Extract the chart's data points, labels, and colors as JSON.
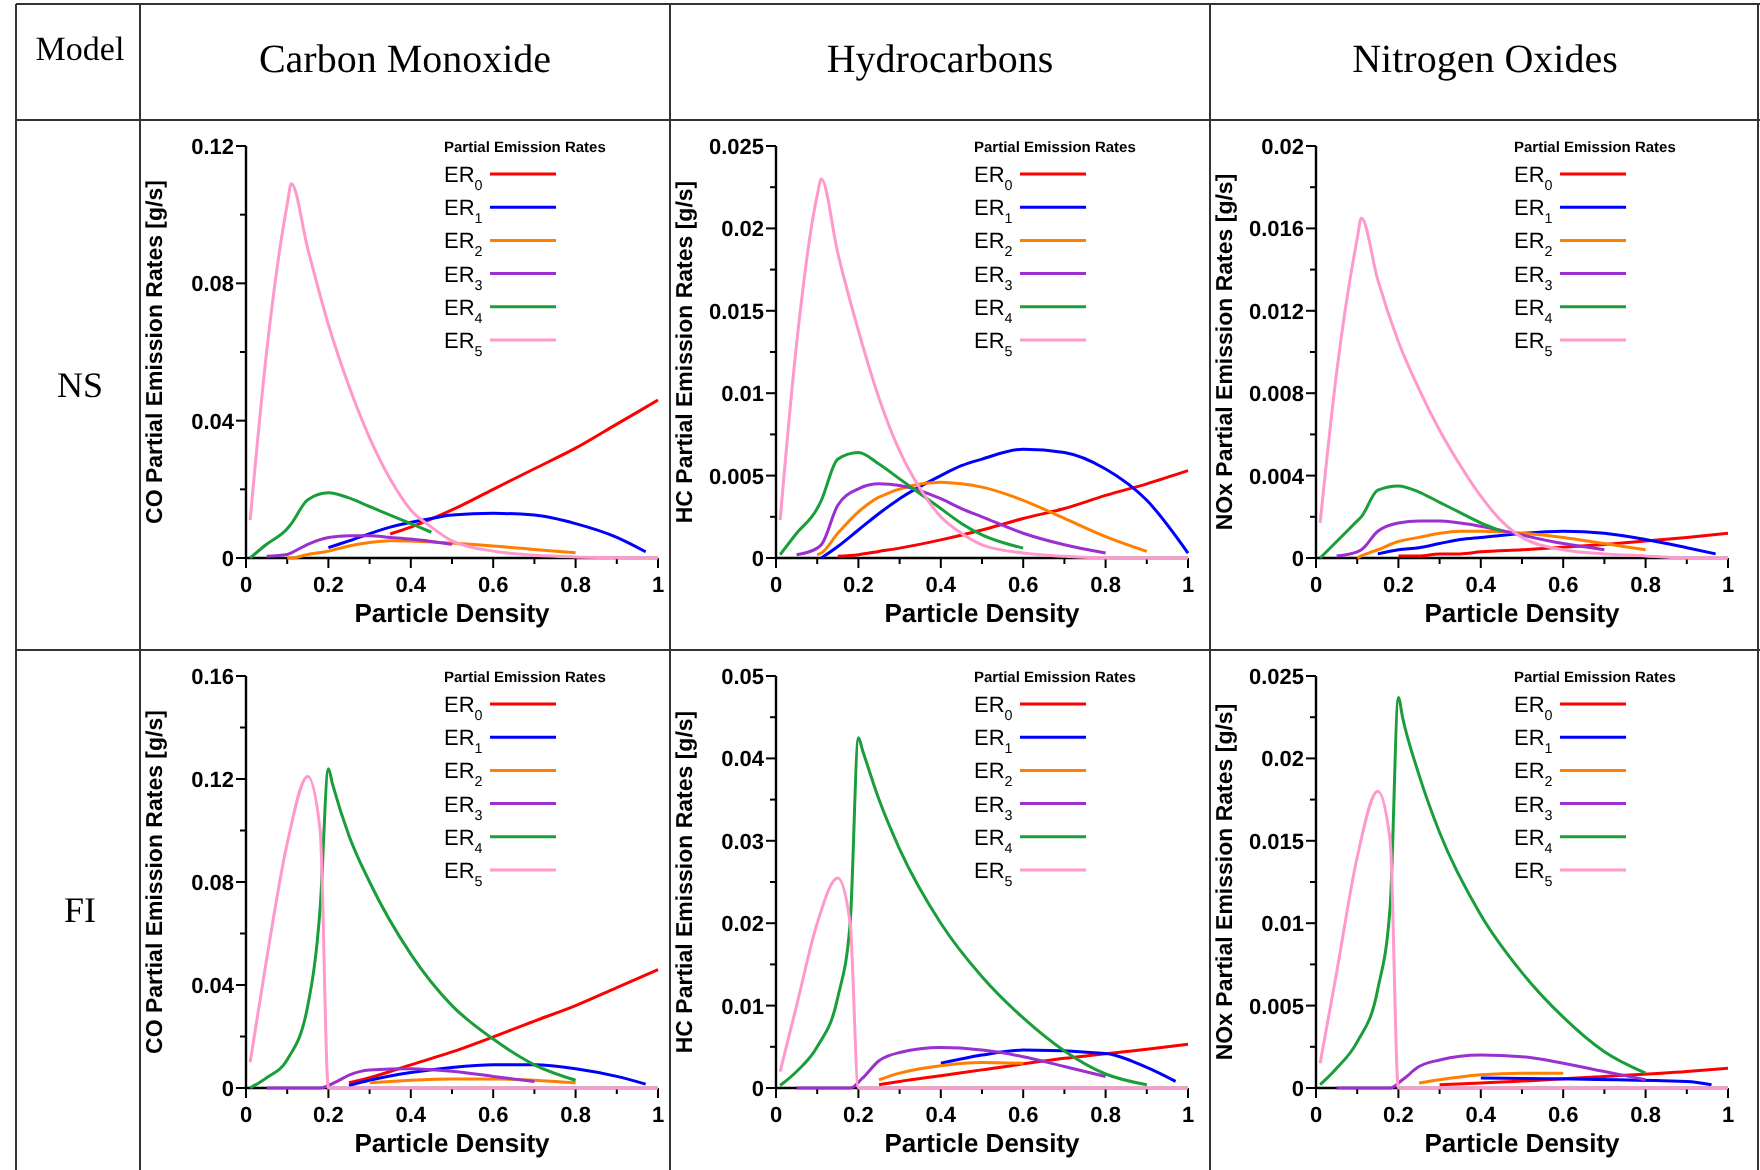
{
  "chart_data": [
    {
      "type": "other",
      "annotations": [
        "Model",
        "Carbon Monoxide",
        "Hydrocarbons",
        "Nitrogen Oxides",
        "NS",
        "FI"
      ]
    },
    {
      "type": "line",
      "xlabel": "Particle Density",
      "ylabel": "CO Partial Emission Rates [g/s]",
      "legend_title": "Partial Emission Rates",
      "legend": "top right",
      "xlim": [
        0,
        1
      ],
      "ylim": [
        0,
        0.12
      ],
      "xticks": [
        0,
        {
          "value": 0.1,
          "label": null
        },
        0.2,
        {
          "value": 0.3,
          "label": null
        },
        0.4,
        {
          "value": 0.5,
          "label": null
        },
        0.6,
        {
          "value": 0.7,
          "label": null
        },
        0.8,
        {
          "value": 0.9,
          "label": null
        },
        1
      ],
      "yticks": [
        0,
        {
          "value": 0.02,
          "label": null
        },
        0.04,
        {
          "value": 0.06,
          "label": null
        },
        0.08,
        {
          "value": 0.1,
          "label": null
        },
        0.12
      ],
      "series": [
        {
          "name": "ER$_{0}$",
          "color": "#ff0000",
          "x": [
            0.35,
            0.4,
            0.5,
            0.6,
            0.7,
            0.8,
            0.9,
            1
          ],
          "values": [
            0.007,
            0.009,
            0.014,
            0.02,
            0.026,
            0.032,
            0.039,
            0.046
          ]
        },
        {
          "name": "ER$_{1}$",
          "color": "#0000ff",
          "x": [
            0.2,
            0.25,
            0.35,
            0.45,
            0.5,
            0.6,
            0.7,
            0.8,
            0.9,
            0.97
          ],
          "values": [
            0.003,
            0.005,
            0.009,
            0.0115,
            0.0125,
            0.013,
            0.0125,
            0.01,
            0.006,
            0.0018
          ]
        },
        {
          "name": "ER$_{2}$",
          "color": "#ff7f00",
          "x": [
            0.1,
            0.11,
            0.15,
            0.2,
            0.25,
            0.3,
            0.35,
            0.6,
            0.7,
            0.8
          ],
          "values": [
            0,
            0,
            0.001,
            0.002,
            0.0035,
            0.0045,
            0.005,
            0.0035,
            0.0025,
            0.0015
          ]
        },
        {
          "name": "ER$_{3}$",
          "color": "#9b30d0",
          "x": [
            0.05,
            0.1,
            0.11,
            0.15,
            0.2,
            0.25,
            0.3,
            0.35,
            0.4,
            0.45,
            0.5
          ],
          "values": [
            0.0005,
            0.001,
            0.0015,
            0.004,
            0.006,
            0.0065,
            0.0065,
            0.006,
            0.0055,
            0.0048,
            0.004
          ]
        },
        {
          "name": "ER$_{4}$",
          "color": "#1a9e3a",
          "x": [
            0.01,
            0.05,
            0.1,
            0.11,
            0.15,
            0.2,
            0.25,
            0.3,
            0.35,
            0.4,
            0.45
          ],
          "values": [
            0,
            0.004,
            0.0085,
            0.01,
            0.017,
            0.019,
            0.0175,
            0.015,
            0.0125,
            0.01,
            0.0075
          ]
        },
        {
          "name": "ER$_{5}$",
          "color": "#ff99cc",
          "x": [
            0.01,
            0.05,
            0.1,
            0.11,
            0.15,
            0.2,
            0.25,
            0.3,
            0.35,
            0.4,
            0.45,
            0.5,
            0.6,
            0.7,
            0.8,
            0.9,
            1
          ],
          "values": [
            0.011,
            0.06,
            0.103,
            0.109,
            0.09,
            0.068,
            0.05,
            0.035,
            0.023,
            0.014,
            0.009,
            0.005,
            0.002,
            0.0008,
            0.0003,
            0.0001,
            0
          ]
        }
      ]
    },
    {
      "type": "line",
      "xlabel": "Particle Density",
      "ylabel": "HC Partial Emission Rates [g/s]",
      "legend_title": "Partial Emission Rates",
      "legend": "top right",
      "xlim": [
        0,
        1
      ],
      "ylim": [
        0,
        0.025
      ],
      "xticks": [
        0,
        {
          "value": 0.1,
          "label": null
        },
        0.2,
        {
          "value": 0.3,
          "label": null
        },
        0.4,
        {
          "value": 0.5,
          "label": null
        },
        0.6,
        {
          "value": 0.7,
          "label": null
        },
        0.8,
        {
          "value": 0.9,
          "label": null
        },
        1
      ],
      "yticks": [
        0,
        {
          "value": 0.0025,
          "label": null
        },
        0.005,
        {
          "value": 0.0075,
          "label": null
        },
        0.01,
        {
          "value": 0.0125,
          "label": null
        },
        0.015,
        {
          "value": 0.0175,
          "label": null
        },
        0.02,
        {
          "value": 0.0225,
          "label": null
        },
        0.025
      ],
      "series": [
        {
          "name": "ER$_{0}$",
          "color": "#ff0000",
          "x": [
            0.15,
            0.2,
            0.25,
            0.3,
            0.4,
            0.5,
            0.6,
            0.7,
            0.8,
            0.9,
            1
          ],
          "values": [
            0.0001,
            0.0002,
            0.0004,
            0.0006,
            0.0011,
            0.0017,
            0.0024,
            0.003,
            0.0038,
            0.0045,
            0.0053
          ]
        },
        {
          "name": "ER$_{1}$",
          "color": "#0000ff",
          "x": [
            0.11,
            0.15,
            0.2,
            0.25,
            0.3,
            0.4,
            0.45,
            0.5,
            0.6,
            0.7,
            0.8,
            0.9,
            1
          ],
          "values": [
            0,
            0.0007,
            0.0017,
            0.0027,
            0.0036,
            0.005,
            0.0056,
            0.006,
            0.0066,
            0.0064,
            0.0054,
            0.0035,
            0.0003
          ]
        },
        {
          "name": "ER$_{2}$",
          "color": "#ff7f00",
          "x": [
            0.1,
            0.11,
            0.15,
            0.2,
            0.25,
            0.4,
            0.45,
            0.5,
            0.6,
            0.7,
            0.8,
            0.9
          ],
          "values": [
            0.0002,
            0.0003,
            0.0015,
            0.0028,
            0.0037,
            0.0046,
            0.0045,
            0.0043,
            0.0035,
            0.0024,
            0.0013,
            0.0004
          ]
        },
        {
          "name": "ER$_{3}$",
          "color": "#9b30d0",
          "x": [
            0.05,
            0.1,
            0.11,
            0.15,
            0.2,
            0.25,
            0.3,
            0.4,
            0.45,
            0.5,
            0.6,
            0.7,
            0.8
          ],
          "values": [
            0.0002,
            0.0006,
            0.0008,
            0.0032,
            0.0042,
            0.0045,
            0.0044,
            0.0036,
            0.003,
            0.0025,
            0.0015,
            0.0008,
            0.0003
          ]
        },
        {
          "name": "ER$_{4}$",
          "color": "#1a9e3a",
          "x": [
            0.01,
            0.05,
            0.1,
            0.11,
            0.15,
            0.2,
            0.25,
            0.3,
            0.4,
            0.45,
            0.5,
            0.6
          ],
          "values": [
            0.0002,
            0.0015,
            0.003,
            0.0035,
            0.006,
            0.0064,
            0.0057,
            0.0048,
            0.003,
            0.0021,
            0.0014,
            0.0006
          ]
        },
        {
          "name": "ER$_{5}$",
          "color": "#ff99cc",
          "x": [
            0.01,
            0.05,
            0.1,
            0.11,
            0.15,
            0.2,
            0.25,
            0.3,
            0.35,
            0.4,
            0.45,
            0.5,
            0.6,
            0.7,
            0.8,
            0.9,
            1
          ],
          "values": [
            0.0023,
            0.013,
            0.022,
            0.023,
            0.0185,
            0.0138,
            0.0097,
            0.0065,
            0.0042,
            0.0025,
            0.0015,
            0.0008,
            0.0003,
            0.0001,
            0,
            0,
            0
          ]
        }
      ]
    },
    {
      "type": "line",
      "xlabel": "Particle Density",
      "ylabel": "NOx Partial Emission Rates [g/s]",
      "legend_title": "Partial Emission Rates",
      "legend": "top right",
      "xlim": [
        0,
        1
      ],
      "ylim": [
        0,
        0.02
      ],
      "xticks": [
        0,
        {
          "value": 0.1,
          "label": null
        },
        0.2,
        {
          "value": 0.3,
          "label": null
        },
        0.4,
        {
          "value": 0.5,
          "label": null
        },
        0.6,
        {
          "value": 0.7,
          "label": null
        },
        0.8,
        {
          "value": 0.9,
          "label": null
        },
        1
      ],
      "yticks": [
        0,
        {
          "value": 0.002,
          "label": null
        },
        0.004,
        {
          "value": 0.006,
          "label": null
        },
        0.008,
        {
          "value": 0.01,
          "label": null
        },
        0.012,
        {
          "value": 0.014,
          "label": null
        },
        0.016,
        {
          "value": 0.018,
          "label": null
        },
        0.02
      ],
      "series": [
        {
          "name": "ER$_{0}$",
          "color": "#ff0000",
          "x": [
            0.2,
            0.25,
            0.3,
            0.35,
            0.4,
            0.5,
            0.9,
            1
          ],
          "values": [
            0.0001,
            0.0001,
            0.0002,
            0.0002,
            0.0003,
            0.0004,
            0.001,
            0.0012
          ]
        },
        {
          "name": "ER$_{1}$",
          "color": "#0000ff",
          "x": [
            0.15,
            0.2,
            0.25,
            0.3,
            0.35,
            0.4,
            0.6,
            0.7,
            0.8,
            0.9,
            0.97
          ],
          "values": [
            0.0002,
            0.0004,
            0.0005,
            0.0007,
            0.0009,
            0.001,
            0.0013,
            0.0012,
            0.0009,
            0.0005,
            0.0002
          ]
        },
        {
          "name": "ER$_{2}$",
          "color": "#ff7f00",
          "x": [
            0.1,
            0.11,
            0.15,
            0.2,
            0.25,
            0.3,
            0.35,
            0.4,
            0.6,
            0.7,
            0.8
          ],
          "values": [
            0,
            0.0001,
            0.0004,
            0.0008,
            0.001,
            0.0012,
            0.0013,
            0.0013,
            0.001,
            0.0007,
            0.0004
          ]
        },
        {
          "name": "ER$_{3}$",
          "color": "#9b30d0",
          "x": [
            0.05,
            0.1,
            0.11,
            0.15,
            0.2,
            0.25,
            0.3,
            0.35,
            0.6,
            0.7
          ],
          "values": [
            0.0001,
            0.0003,
            0.0004,
            0.0013,
            0.0017,
            0.0018,
            0.0018,
            0.0017,
            0.0007,
            0.0004
          ]
        },
        {
          "name": "ER$_{4}$",
          "color": "#1a9e3a",
          "x": [
            0.01,
            0.05,
            0.1,
            0.11,
            0.15,
            0.2,
            0.25,
            0.3,
            0.35,
            0.4,
            0.45
          ],
          "values": [
            0,
            0.0008,
            0.0018,
            0.002,
            0.0033,
            0.0035,
            0.0032,
            0.0027,
            0.0022,
            0.0017,
            0.0013
          ]
        },
        {
          "name": "ER$_{5}$",
          "color": "#ff99cc",
          "x": [
            0.01,
            0.05,
            0.1,
            0.11,
            0.15,
            0.2,
            0.25,
            0.3,
            0.35,
            0.4,
            0.45,
            0.5,
            0.6,
            0.7,
            0.8,
            0.9,
            1
          ],
          "values": [
            0.0017,
            0.009,
            0.0155,
            0.0165,
            0.0135,
            0.0105,
            0.0082,
            0.0062,
            0.0045,
            0.003,
            0.0018,
            0.001,
            0.0004,
            0.0002,
            0.0001,
            0,
            0
          ]
        }
      ]
    },
    {
      "type": "line",
      "xlabel": "Particle Density",
      "ylabel": "CO Partial Emission Rates [g/s]",
      "legend_title": "Partial Emission Rates",
      "legend": "top right",
      "xlim": [
        0,
        1
      ],
      "ylim": [
        0,
        0.16
      ],
      "xticks": [
        0,
        {
          "value": 0.1,
          "label": null
        },
        0.2,
        {
          "value": 0.3,
          "label": null
        },
        0.4,
        {
          "value": 0.5,
          "label": null
        },
        0.6,
        {
          "value": 0.7,
          "label": null
        },
        0.8,
        {
          "value": 0.9,
          "label": null
        },
        1
      ],
      "yticks": [
        0,
        {
          "value": 0.02,
          "label": null
        },
        0.04,
        {
          "value": 0.06,
          "label": null
        },
        0.08,
        {
          "value": 0.1,
          "label": null
        },
        0.12,
        {
          "value": 0.14,
          "label": null
        },
        0.16
      ],
      "series": [
        {
          "name": "ER$_{0}$",
          "color": "#ff0000",
          "x": [
            0.25,
            0.3,
            0.4,
            0.5,
            0.7,
            0.8,
            0.9,
            1
          ],
          "values": [
            0.002,
            0.004,
            0.009,
            0.014,
            0.026,
            0.032,
            0.039,
            0.046
          ]
        },
        {
          "name": "ER$_{1}$",
          "color": "#0000ff",
          "x": [
            0.25,
            0.3,
            0.4,
            0.5,
            0.6,
            0.7,
            0.8,
            0.9,
            0.97
          ],
          "values": [
            0.001,
            0.003,
            0.006,
            0.008,
            0.009,
            0.009,
            0.0075,
            0.0045,
            0.0015
          ]
        },
        {
          "name": "ER$_{2}$",
          "color": "#ff7f00",
          "x": [
            0.3,
            0.4,
            0.5,
            0.6,
            0.8
          ],
          "values": [
            0.002,
            0.003,
            0.0035,
            0.0035,
            0.002
          ]
        },
        {
          "name": "ER$_{3}$",
          "color": "#9b30d0",
          "x": [
            0.05,
            0.1,
            0.15,
            0.18,
            0.22,
            0.25,
            0.3,
            0.4,
            0.5,
            0.6,
            0.7
          ],
          "values": [
            0,
            0,
            0,
            0,
            0.0025,
            0.005,
            0.007,
            0.0075,
            0.0065,
            0.0045,
            0.0025
          ]
        },
        {
          "name": "ER$_{4}$",
          "color": "#1a9e3a",
          "x": [
            0.01,
            0.05,
            0.1,
            0.15,
            0.18,
            0.2,
            0.21,
            0.25,
            0.3,
            0.4,
            0.5,
            0.6,
            0.7,
            0.8
          ],
          "values": [
            0,
            0.004,
            0.011,
            0.032,
            0.07,
            0.124,
            0.118,
            0.098,
            0.08,
            0.052,
            0.032,
            0.019,
            0.009,
            0.003
          ]
        },
        {
          "name": "ER$_{5}$",
          "color": "#ff99cc",
          "x": [
            0.01,
            0.05,
            0.1,
            0.15,
            0.18,
            0.2,
            0.21,
            0.25,
            0.3,
            0.4,
            0.5,
            0.6,
            0.7,
            0.8,
            0.9,
            1
          ],
          "values": [
            0.01,
            0.05,
            0.095,
            0.121,
            0.1,
            0,
            0,
            0,
            0,
            0,
            0,
            0,
            0,
            0,
            0,
            0
          ]
        }
      ]
    },
    {
      "type": "line",
      "xlabel": "Particle Density",
      "ylabel": "HC Partial Emission Rates [g/s]",
      "legend_title": "Partial Emission Rates",
      "legend": "top right",
      "xlim": [
        0,
        1
      ],
      "ylim": [
        0,
        0.05
      ],
      "xticks": [
        0,
        {
          "value": 0.1,
          "label": null
        },
        0.2,
        {
          "value": 0.3,
          "label": null
        },
        0.4,
        {
          "value": 0.5,
          "label": null
        },
        0.6,
        {
          "value": 0.7,
          "label": null
        },
        0.8,
        {
          "value": 0.9,
          "label": null
        },
        1
      ],
      "yticks": [
        0,
        {
          "value": 0.005,
          "label": null
        },
        0.01,
        {
          "value": 0.015,
          "label": null
        },
        0.02,
        {
          "value": 0.025,
          "label": null
        },
        0.03,
        {
          "value": 0.035,
          "label": null
        },
        0.04,
        {
          "value": 0.045,
          "label": null
        },
        0.05
      ],
      "series": [
        {
          "name": "ER$_{0}$",
          "color": "#ff0000",
          "x": [
            0.25,
            0.3,
            0.4,
            0.5,
            0.7,
            0.9,
            1
          ],
          "values": [
            0.0004,
            0.0008,
            0.0015,
            0.0022,
            0.0036,
            0.0047,
            0.0053
          ]
        },
        {
          "name": "ER$_{1}$",
          "color": "#0000ff",
          "x": [
            0.4,
            0.5,
            0.6,
            0.8,
            0.9,
            0.97
          ],
          "values": [
            0.003,
            0.004,
            0.0046,
            0.0042,
            0.0025,
            0.0008
          ]
        },
        {
          "name": "ER$_{2}$",
          "color": "#ff7f00",
          "x": [
            0.25,
            0.3,
            0.4,
            0.5,
            0.6
          ],
          "values": [
            0.001,
            0.0018,
            0.0027,
            0.0031,
            0.003
          ]
        },
        {
          "name": "ER$_{3}$",
          "color": "#9b30d0",
          "x": [
            0.05,
            0.1,
            0.15,
            0.18,
            0.21,
            0.25,
            0.3,
            0.4,
            0.5,
            0.6,
            0.7,
            0.8
          ],
          "values": [
            0,
            0,
            0,
            0,
            0.0012,
            0.0033,
            0.0043,
            0.0049,
            0.0046,
            0.0038,
            0.0026,
            0.0014
          ]
        },
        {
          "name": "ER$_{4}$",
          "color": "#1a9e3a",
          "x": [
            0.01,
            0.05,
            0.1,
            0.15,
            0.18,
            0.2,
            0.21,
            0.25,
            0.3,
            0.4,
            0.5,
            0.6,
            0.7,
            0.8,
            0.9
          ],
          "values": [
            0.0003,
            0.002,
            0.005,
            0.011,
            0.02,
            0.0425,
            0.041,
            0.035,
            0.029,
            0.02,
            0.0135,
            0.0085,
            0.0045,
            0.0017,
            0.0004
          ]
        },
        {
          "name": "ER$_{5}$",
          "color": "#ff99cc",
          "x": [
            0.01,
            0.05,
            0.1,
            0.15,
            0.18,
            0.2,
            0.21,
            0.25,
            0.3,
            0.4,
            0.5,
            0.6,
            0.7,
            0.8,
            0.9,
            1
          ],
          "values": [
            0.002,
            0.01,
            0.02,
            0.0255,
            0.02,
            0,
            0,
            0,
            0,
            0,
            0,
            0,
            0,
            0,
            0,
            0
          ]
        }
      ]
    },
    {
      "type": "line",
      "xlabel": "Particle Density",
      "ylabel": "NOx Partial Emission Rates [g/s]",
      "legend_title": "Partial Emission Rates",
      "legend": "top right",
      "xlim": [
        0,
        1
      ],
      "ylim": [
        0,
        0.025
      ],
      "xticks": [
        0,
        {
          "value": 0.1,
          "label": null
        },
        0.2,
        {
          "value": 0.3,
          "label": null
        },
        0.4,
        {
          "value": 0.5,
          "label": null
        },
        0.6,
        {
          "value": 0.7,
          "label": null
        },
        0.8,
        {
          "value": 0.9,
          "label": null
        },
        1
      ],
      "yticks": [
        0,
        {
          "value": 0.0025,
          "label": null
        },
        0.005,
        {
          "value": 0.0075,
          "label": null
        },
        0.01,
        {
          "value": 0.0125,
          "label": null
        },
        0.015,
        {
          "value": 0.0175,
          "label": null
        },
        0.02,
        {
          "value": 0.0225,
          "label": null
        },
        0.025
      ],
      "series": [
        {
          "name": "ER$_{0}$",
          "color": "#ff0000",
          "x": [
            0.3,
            0.4,
            0.7,
            0.9,
            1
          ],
          "values": [
            0.0002,
            0.0003,
            0.0007,
            0.001,
            0.0012
          ]
        },
        {
          "name": "ER$_{1}$",
          "color": "#0000ff",
          "x": [
            0.4,
            0.9,
            0.96
          ],
          "values": [
            0.0006,
            0.0004,
            0.0002
          ]
        },
        {
          "name": "ER$_{2}$",
          "color": "#ff7f00",
          "x": [
            0.25,
            0.3,
            0.4,
            0.5,
            0.6
          ],
          "values": [
            0.0003,
            0.0005,
            0.0008,
            0.0009,
            0.0009
          ]
        },
        {
          "name": "ER$_{3}$",
          "color": "#9b30d0",
          "x": [
            0.05,
            0.1,
            0.15,
            0.18,
            0.21,
            0.25,
            0.3,
            0.4,
            0.5,
            0.6,
            0.7,
            0.8
          ],
          "values": [
            0,
            0,
            0,
            0,
            0.0005,
            0.0013,
            0.0017,
            0.002,
            0.0019,
            0.0015,
            0.001,
            0.0005
          ]
        },
        {
          "name": "ER$_{4}$",
          "color": "#1a9e3a",
          "x": [
            0.01,
            0.05,
            0.1,
            0.15,
            0.18,
            0.2,
            0.21,
            0.25,
            0.3,
            0.4,
            0.5,
            0.6,
            0.7,
            0.8
          ],
          "values": [
            0.0002,
            0.0012,
            0.0028,
            0.006,
            0.011,
            0.0237,
            0.0225,
            0.019,
            0.0155,
            0.0105,
            0.007,
            0.0043,
            0.0022,
            0.0009
          ]
        },
        {
          "name": "ER$_{5}$",
          "color": "#ff99cc",
          "x": [
            0.01,
            0.05,
            0.1,
            0.15,
            0.18,
            0.2,
            0.21,
            0.25,
            0.3,
            0.4,
            0.5,
            0.6,
            0.7,
            0.8,
            0.9,
            1
          ],
          "values": [
            0.0015,
            0.007,
            0.014,
            0.018,
            0.015,
            0,
            0,
            0,
            0,
            0,
            0,
            0,
            0,
            0,
            0,
            0
          ]
        }
      ]
    }
  ]
}
